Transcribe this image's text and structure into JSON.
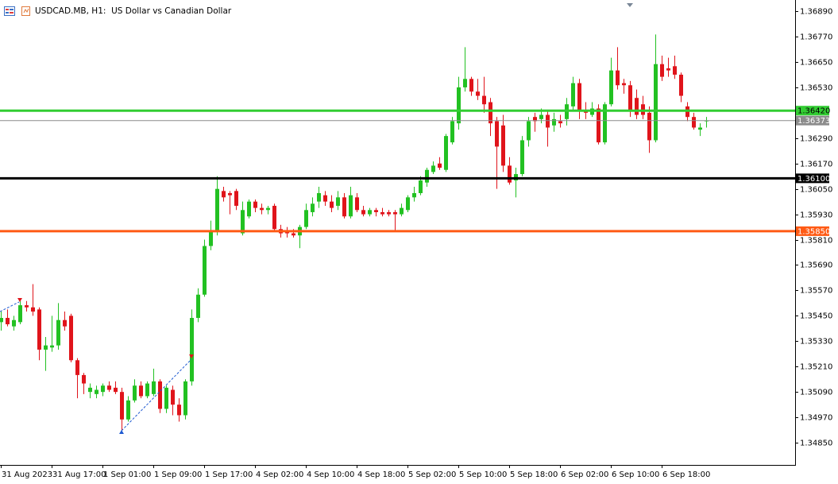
{
  "chart_data": {
    "type": "candlestick",
    "title": "USDCAD.MB, H1:  US Dollar vs Canadian Dollar",
    "up_color": "#22c122",
    "down_color": "#e0141b",
    "grid": false,
    "ylim": [
      1.34745,
      1.36943
    ],
    "yticks": [
      {
        "value": 1.3689,
        "label": "1.36890"
      },
      {
        "value": 1.3677,
        "label": "1.36770"
      },
      {
        "value": 1.3665,
        "label": "1.36650"
      },
      {
        "value": 1.3653,
        "label": "1.36530"
      },
      {
        "value": 1.3629,
        "label": "1.36290"
      },
      {
        "value": 1.3617,
        "label": "1.36170"
      },
      {
        "value": 1.3605,
        "label": "1.36050"
      },
      {
        "value": 1.3593,
        "label": "1.35930"
      },
      {
        "value": 1.3581,
        "label": "1.35810"
      },
      {
        "value": 1.3569,
        "label": "1.35690"
      },
      {
        "value": 1.3557,
        "label": "1.35570"
      },
      {
        "value": 1.3545,
        "label": "1.35450"
      },
      {
        "value": 1.3533,
        "label": "1.35330"
      },
      {
        "value": 1.3521,
        "label": "1.35210"
      },
      {
        "value": 1.3509,
        "label": "1.35090"
      },
      {
        "value": 1.3497,
        "label": "1.34970"
      },
      {
        "value": 1.3485,
        "label": "1.34850"
      }
    ],
    "levels": [
      {
        "value": 1.3642,
        "label": "1.36420",
        "color": "#32cd32",
        "text_color": "#000000",
        "width": 3
      },
      {
        "value": 1.36373,
        "label": "1.36373",
        "color": "#8c8c8c",
        "text_color": "#ffffff",
        "width": 1
      },
      {
        "value": 1.361,
        "label": "1.36100",
        "color": "#000000",
        "text_color": "#ffffff",
        "width": 3
      },
      {
        "value": 1.3585,
        "label": "1.35850",
        "color": "#ff5a14",
        "text_color": "#ffffff",
        "width": 3
      }
    ],
    "categories": [
      "31 Aug 2023",
      null,
      null,
      null,
      null,
      null,
      null,
      null,
      "31 Aug 17:00",
      null,
      null,
      null,
      null,
      null,
      null,
      null,
      "1 Sep 01:00",
      null,
      null,
      null,
      null,
      null,
      null,
      null,
      "1 Sep 09:00",
      null,
      null,
      null,
      null,
      null,
      null,
      null,
      "1 Sep 17:00",
      null,
      null,
      null,
      null,
      null,
      null,
      null,
      "4 Sep 02:00",
      null,
      null,
      null,
      null,
      null,
      null,
      null,
      "4 Sep 10:00",
      null,
      null,
      null,
      null,
      null,
      null,
      null,
      "4 Sep 18:00",
      null,
      null,
      null,
      null,
      null,
      null,
      null,
      "5 Sep 02:00",
      null,
      null,
      null,
      null,
      null,
      null,
      null,
      "5 Sep 10:00",
      null,
      null,
      null,
      null,
      null,
      null,
      null,
      "5 Sep 18:00",
      null,
      null,
      null,
      null,
      null,
      null,
      null,
      "6 Sep 02:00",
      null,
      null,
      null,
      null,
      null,
      null,
      null,
      "6 Sep 10:00",
      null,
      null,
      null,
      null,
      null,
      null,
      null,
      "6 Sep 18:00",
      null,
      null,
      null,
      null,
      null,
      null,
      null
    ],
    "open": [
      1.3542,
      1.3544,
      1.354,
      1.3542,
      1.355,
      1.3549,
      1.3548,
      1.3529,
      1.353,
      1.3531,
      1.3543,
      1.3545,
      1.3524,
      1.3517,
      1.3509,
      1.3508,
      1.3509,
      1.3512,
      1.3511,
      1.3509,
      1.3496,
      1.3505,
      1.3512,
      1.3507,
      1.3508,
      1.3514,
      1.3501,
      1.351,
      1.3503,
      1.3498,
      1.3514,
      1.3544,
      1.3555,
      1.3578,
      1.3585,
      1.3604,
      1.3603,
      1.3604,
      1.3584,
      1.3592,
      1.3599,
      1.3596,
      1.3595,
      1.3597,
      1.3586,
      1.3585,
      1.3584,
      1.3583,
      1.3587,
      1.3594,
      1.3599,
      1.3602,
      1.3599,
      1.3597,
      1.3601,
      1.3592,
      1.3601,
      1.3595,
      1.3593,
      1.3595,
      1.3594,
      1.3594,
      1.3594,
      1.3593,
      1.3595,
      1.3601,
      1.3603,
      1.3608,
      1.3613,
      1.3617,
      1.3614,
      1.3627,
      1.3636,
      1.3653,
      1.3657,
      1.3651,
      1.3649,
      1.3646,
      1.3637,
      1.3635,
      1.3616,
      1.3609,
      1.3612,
      1.3628,
      1.3639,
      1.3638,
      1.364,
      1.3635,
      1.3637,
      1.3638,
      1.3644,
      1.3655,
      1.3642,
      1.364,
      1.3643,
      1.3627,
      1.3645,
      1.3661,
      1.3655,
      1.3654,
      1.3648,
      1.3645,
      1.3641,
      1.3628,
      1.3664,
      1.3662,
      1.3663,
      1.3659,
      1.3644,
      1.3639,
      1.3633,
      1.3637
    ],
    "high": [
      1.3547,
      1.3548,
      1.3545,
      1.3553,
      1.3552,
      1.356,
      1.3549,
      1.3535,
      1.3545,
      1.3551,
      1.3547,
      1.3546,
      1.3525,
      1.3518,
      1.3513,
      1.3512,
      1.3513,
      1.3514,
      1.3514,
      1.3511,
      1.3507,
      1.3515,
      1.3514,
      1.3514,
      1.352,
      1.3515,
      1.3512,
      1.3512,
      1.3506,
      1.3515,
      1.3548,
      1.3558,
      1.3581,
      1.359,
      1.3611,
      1.3606,
      1.3604,
      1.3605,
      1.3599,
      1.36,
      1.36,
      1.3598,
      1.3597,
      1.3598,
      1.3588,
      1.3587,
      1.3586,
      1.3588,
      1.3598,
      1.3601,
      1.3606,
      1.3604,
      1.3602,
      1.3604,
      1.3603,
      1.3606,
      1.3603,
      1.3597,
      1.3596,
      1.3596,
      1.3596,
      1.3595,
      1.3595,
      1.3598,
      1.3602,
      1.3606,
      1.3611,
      1.3615,
      1.3618,
      1.362,
      1.3631,
      1.3639,
      1.3658,
      1.3672,
      1.3658,
      1.3657,
      1.3658,
      1.3648,
      1.3639,
      1.364,
      1.362,
      1.3615,
      1.363,
      1.3639,
      1.3641,
      1.3643,
      1.3642,
      1.3641,
      1.364,
      1.3648,
      1.3658,
      1.3657,
      1.3646,
      1.3646,
      1.3645,
      1.3646,
      1.3667,
      1.3672,
      1.3657,
      1.3656,
      1.3652,
      1.3649,
      1.3644,
      1.3678,
      1.3668,
      1.3667,
      1.3668,
      1.366,
      1.3646,
      1.3641,
      1.3636,
      1.3639
    ],
    "low": [
      1.3538,
      1.354,
      1.3538,
      1.3541,
      1.3547,
      1.3545,
      1.3524,
      1.3519,
      1.3528,
      1.3529,
      1.3538,
      1.3523,
      1.3506,
      1.3508,
      1.3506,
      1.3506,
      1.3507,
      1.3509,
      1.3508,
      1.3491,
      1.3495,
      1.3504,
      1.3506,
      1.3506,
      1.3507,
      1.3499,
      1.3499,
      1.3498,
      1.3495,
      1.3496,
      1.3512,
      1.3542,
      1.3554,
      1.3576,
      1.3583,
      1.3599,
      1.3593,
      1.3595,
      1.3583,
      1.3591,
      1.3594,
      1.3593,
      1.3593,
      1.3585,
      1.3582,
      1.3582,
      1.3582,
      1.3577,
      1.3586,
      1.3592,
      1.3596,
      1.3597,
      1.3594,
      1.3595,
      1.3591,
      1.3591,
      1.3594,
      1.3592,
      1.3592,
      1.3592,
      1.3592,
      1.3592,
      1.3585,
      1.3592,
      1.3594,
      1.3599,
      1.3602,
      1.3606,
      1.3612,
      1.3614,
      1.3613,
      1.3626,
      1.3633,
      1.3651,
      1.3649,
      1.3647,
      1.3641,
      1.363,
      1.3605,
      1.3613,
      1.3607,
      1.3601,
      1.3611,
      1.3625,
      1.3632,
      1.3636,
      1.3625,
      1.3632,
      1.3634,
      1.3635,
      1.3642,
      1.3638,
      1.3638,
      1.3639,
      1.3626,
      1.3626,
      1.3644,
      1.3652,
      1.365,
      1.3639,
      1.3638,
      1.3638,
      1.3622,
      1.3627,
      1.3656,
      1.3658,
      1.3657,
      1.3646,
      1.3637,
      1.3633,
      1.363,
      1.3634
    ],
    "close": [
      1.3544,
      1.3541,
      1.3543,
      1.355,
      1.3549,
      1.3547,
      1.3529,
      1.3531,
      1.3531,
      1.3543,
      1.354,
      1.3524,
      1.3517,
      1.3513,
      1.3511,
      1.351,
      1.3512,
      1.351,
      1.3509,
      1.3496,
      1.3505,
      1.3512,
      1.3507,
      1.3513,
      1.3514,
      1.3501,
      1.3511,
      1.3503,
      1.3498,
      1.3514,
      1.3544,
      1.3555,
      1.3578,
      1.3585,
      1.3605,
      1.3601,
      1.3602,
      1.3597,
      1.3595,
      1.3599,
      1.3596,
      1.3595,
      1.3596,
      1.3586,
      1.3584,
      1.3584,
      1.3583,
      1.3587,
      1.3595,
      1.3598,
      1.3603,
      1.3599,
      1.3596,
      1.3601,
      1.3592,
      1.3602,
      1.3595,
      1.3593,
      1.3595,
      1.3594,
      1.3593,
      1.3593,
      1.3593,
      1.3596,
      1.3601,
      1.3603,
      1.3609,
      1.3614,
      1.3616,
      1.3615,
      1.363,
      1.3637,
      1.3653,
      1.3657,
      1.3651,
      1.3649,
      1.3645,
      1.3636,
      1.3625,
      1.3616,
      1.3608,
      1.3612,
      1.3628,
      1.3637,
      1.3637,
      1.364,
      1.3634,
      1.3638,
      1.3636,
      1.3645,
      1.3655,
      1.3642,
      1.3641,
      1.3643,
      1.3627,
      1.3645,
      1.3661,
      1.3654,
      1.3654,
      1.3642,
      1.364,
      1.364,
      1.3628,
      1.3664,
      1.3658,
      1.3661,
      1.3659,
      1.3649,
      1.3639,
      1.3634,
      1.3634,
      1.36373
    ]
  }
}
